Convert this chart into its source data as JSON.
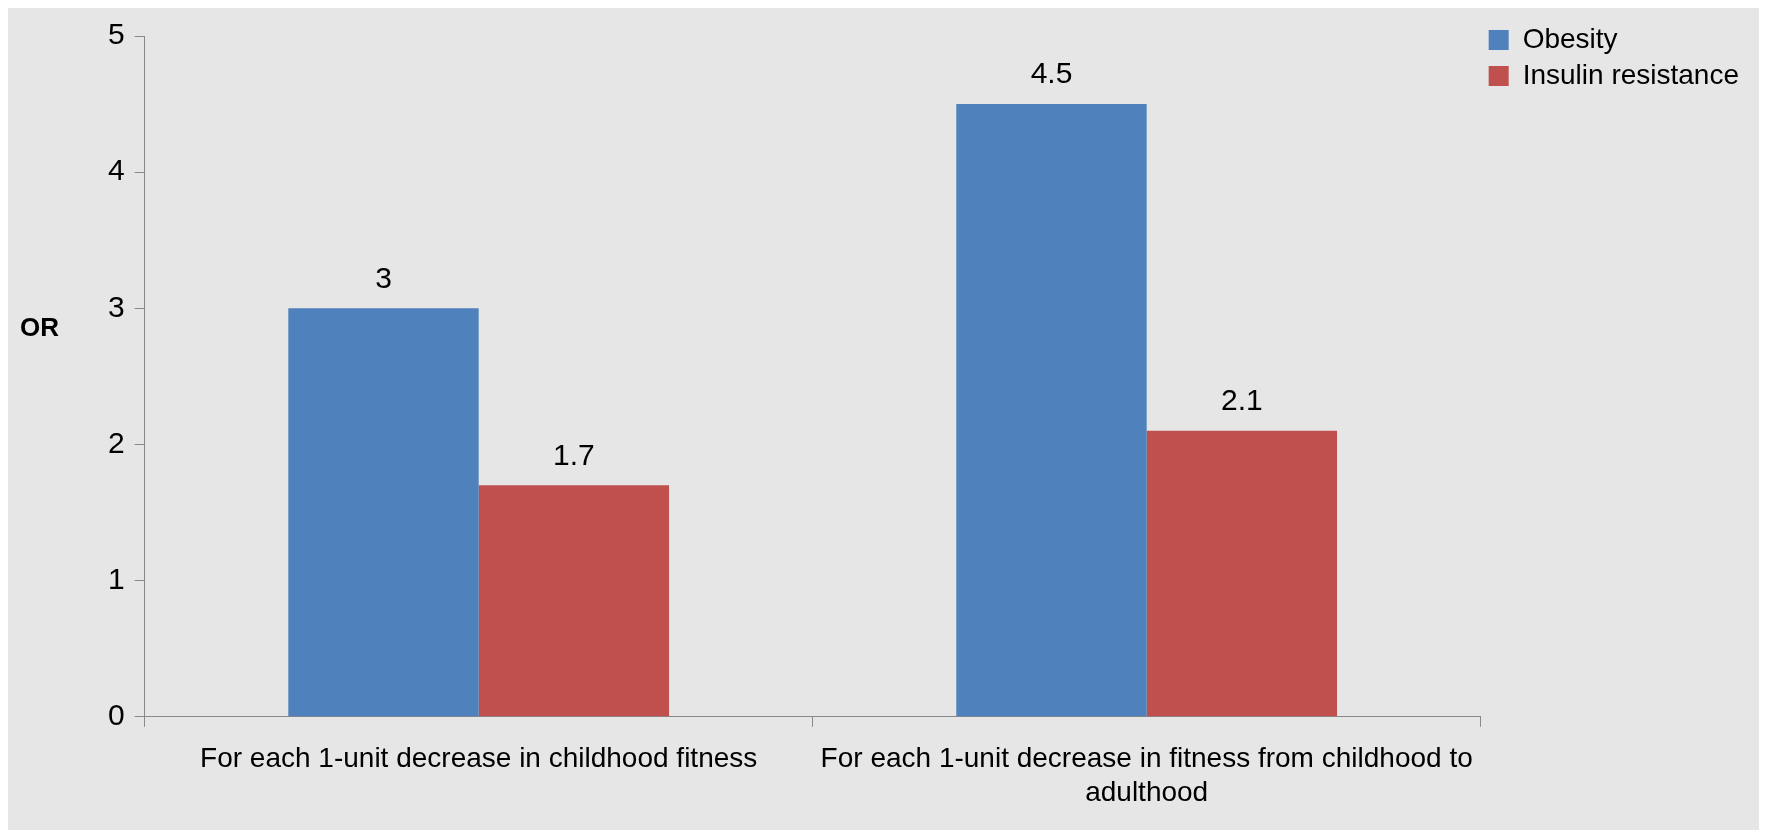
{
  "chart_data": {
    "type": "bar",
    "ylabel": "OR",
    "categories": [
      "For each 1-unit decrease in childhood fitness",
      "For each 1-unit decrease in fitness from childhood to adulthood"
    ],
    "series": [
      {
        "name": "Obesity",
        "color": "#4f81bd",
        "values": [
          3,
          4.5
        ]
      },
      {
        "name": "Insulin resistance",
        "color": "#c0504d",
        "values": [
          1.7,
          2.1
        ]
      }
    ],
    "ylim": [
      0,
      5
    ],
    "yticks": [
      0,
      1,
      2,
      3,
      4,
      5
    ],
    "grid": false,
    "legend": "top right",
    "data_labels": true
  }
}
